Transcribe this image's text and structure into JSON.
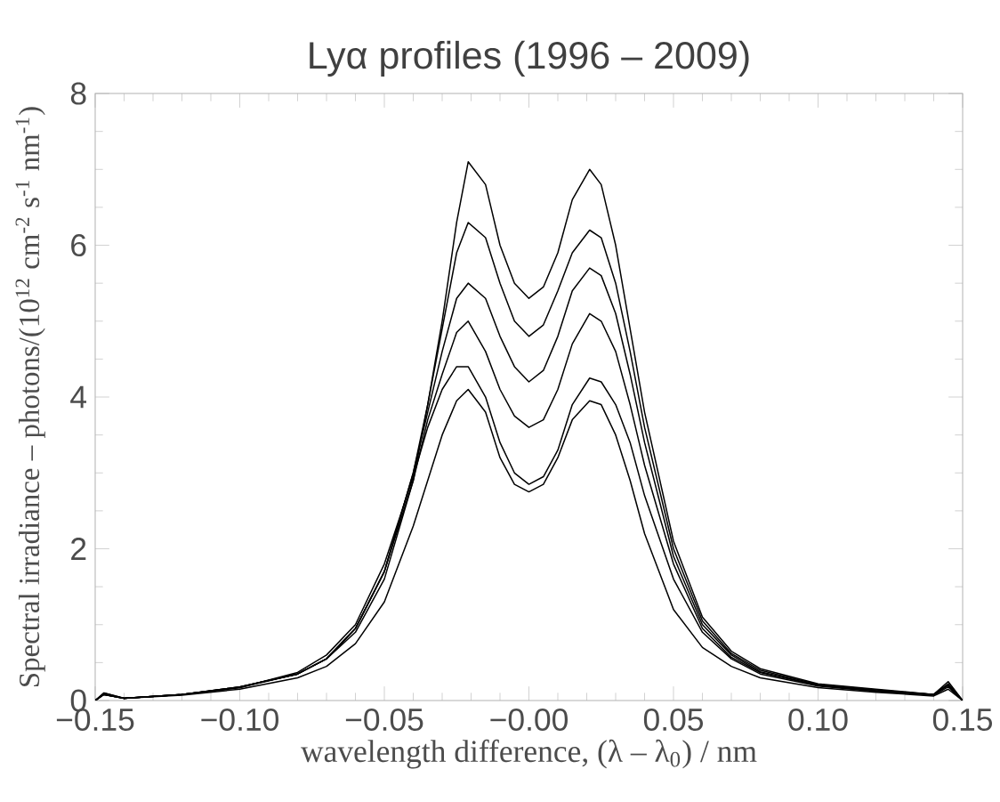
{
  "chart_data": {
    "type": "line",
    "title": "Lyα profiles (1996 – 2009)",
    "xlabel": "wavelength difference, (λ – λ$_{0}$)  / nm",
    "ylabel": "Spectral irradiance – photons/(10$^{12}$ cm$^{-2}$ s$^{-1}$ nm$^{-1}$)",
    "x": [
      -0.15,
      -0.147,
      -0.14,
      -0.12,
      -0.1,
      -0.08,
      -0.07,
      -0.06,
      -0.05,
      -0.04,
      -0.035,
      -0.03,
      -0.025,
      -0.021,
      -0.015,
      -0.01,
      -0.005,
      0,
      0.005,
      0.01,
      0.015,
      0.021,
      0.025,
      0.03,
      0.035,
      0.04,
      0.05,
      0.06,
      0.07,
      0.08,
      0.1,
      0.12,
      0.14,
      0.145,
      0.15
    ],
    "series": [
      {
        "color": "#000000",
        "values": [
          0,
          0.1,
          0.03,
          0.08,
          0.18,
          0.35,
          0.55,
          0.9,
          1.6,
          2.9,
          3.9,
          5.0,
          6.3,
          7.1,
          6.8,
          6.0,
          5.5,
          5.3,
          5.45,
          5.9,
          6.6,
          7.0,
          6.8,
          6.0,
          4.9,
          3.8,
          2.1,
          1.1,
          0.65,
          0.42,
          0.22,
          0.15,
          0.08,
          0.25,
          0
        ]
      },
      {
        "color": "#000000",
        "values": [
          0,
          0.08,
          0.03,
          0.08,
          0.18,
          0.35,
          0.55,
          0.95,
          1.7,
          3.0,
          3.9,
          4.9,
          5.9,
          6.3,
          6.1,
          5.5,
          5.0,
          4.8,
          4.95,
          5.4,
          5.9,
          6.2,
          6.1,
          5.5,
          4.6,
          3.6,
          2.0,
          1.05,
          0.62,
          0.4,
          0.21,
          0.14,
          0.08,
          0.22,
          0
        ]
      },
      {
        "color": "#000000",
        "values": [
          0,
          0.08,
          0.03,
          0.08,
          0.18,
          0.35,
          0.55,
          0.95,
          1.7,
          3.0,
          3.8,
          4.6,
          5.3,
          5.5,
          5.3,
          4.8,
          4.4,
          4.2,
          4.35,
          4.8,
          5.4,
          5.7,
          5.6,
          5.1,
          4.3,
          3.4,
          1.9,
          1.0,
          0.6,
          0.38,
          0.2,
          0.13,
          0.08,
          0.2,
          0
        ]
      },
      {
        "color": "#000000",
        "values": [
          0,
          0.08,
          0.03,
          0.08,
          0.17,
          0.35,
          0.55,
          0.95,
          1.7,
          2.9,
          3.7,
          4.3,
          4.85,
          5.0,
          4.6,
          4.1,
          3.75,
          3.6,
          3.7,
          4.1,
          4.7,
          5.1,
          5.0,
          4.6,
          3.9,
          3.1,
          1.8,
          0.95,
          0.57,
          0.37,
          0.2,
          0.13,
          0.08,
          0.2,
          0
        ]
      },
      {
        "color": "#000000",
        "values": [
          0,
          0.1,
          0.03,
          0.08,
          0.17,
          0.37,
          0.6,
          1.0,
          1.8,
          2.95,
          3.6,
          4.1,
          4.4,
          4.4,
          4.0,
          3.4,
          3.0,
          2.85,
          2.95,
          3.3,
          3.9,
          4.25,
          4.2,
          3.9,
          3.4,
          2.7,
          1.6,
          0.9,
          0.55,
          0.35,
          0.19,
          0.12,
          0.07,
          0.18,
          0
        ]
      },
      {
        "color": "#000000",
        "values": [
          0,
          0.08,
          0.03,
          0.07,
          0.15,
          0.3,
          0.45,
          0.75,
          1.3,
          2.3,
          2.9,
          3.5,
          3.95,
          4.1,
          3.8,
          3.2,
          2.85,
          2.75,
          2.85,
          3.2,
          3.7,
          3.95,
          3.9,
          3.5,
          2.9,
          2.2,
          1.2,
          0.7,
          0.45,
          0.3,
          0.17,
          0.11,
          0.06,
          0.15,
          0
        ]
      }
    ],
    "xlim": [
      -0.15,
      0.15
    ],
    "ylim": [
      0,
      8
    ],
    "xticks": [
      {
        "value": -0.15,
        "label": "−0.15"
      },
      {
        "value": -0.1,
        "label": "−0.10"
      },
      {
        "value": -0.05,
        "label": "−0.05"
      },
      {
        "value": 0,
        "label": "−0.00"
      },
      {
        "value": 0.05,
        "label": "0.05"
      },
      {
        "value": 0.1,
        "label": "0.10"
      },
      {
        "value": 0.15,
        "label": "0.15"
      }
    ],
    "yticks": [
      0,
      2,
      4,
      6,
      8
    ],
    "line_style": "solid",
    "marker": "none"
  }
}
